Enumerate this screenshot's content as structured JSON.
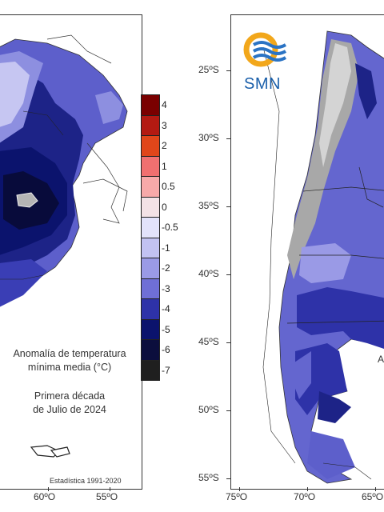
{
  "left_map": {
    "legend_title": [
      "Anomalía de temperatura",
      "mínima media (°C)"
    ],
    "period": [
      "Primera década",
      "de Julio de 2024"
    ],
    "source": "Estadística 1991-2020",
    "x_ticks": [
      "60ºO",
      "55ºO"
    ]
  },
  "colorbar": {
    "labels": [
      "4",
      "3",
      "2",
      "1",
      "0.5",
      "0",
      "-0.5",
      "-1",
      "-2",
      "-3",
      "-4",
      "-5",
      "-6",
      "-7"
    ],
    "colors": [
      "#7a0000",
      "#b31a12",
      "#e0461a",
      "#f07070",
      "#f7a9a9",
      "#f3e2e6",
      "#e3e3fb",
      "#c2c2f2",
      "#9a9ae6",
      "#6f6fd6",
      "#2e32a8",
      "#0b136d",
      "#0b0e3d",
      "#1f1f1f"
    ]
  },
  "right_map": {
    "logo_text": "SMN",
    "y_ticks": [
      "25ºS",
      "30ºS",
      "35ºS",
      "40ºS",
      "45ºS",
      "50ºS",
      "55ºS"
    ],
    "x_ticks": [
      "75ºO",
      "70ºO",
      "65ºO"
    ],
    "cut_label": "A"
  }
}
